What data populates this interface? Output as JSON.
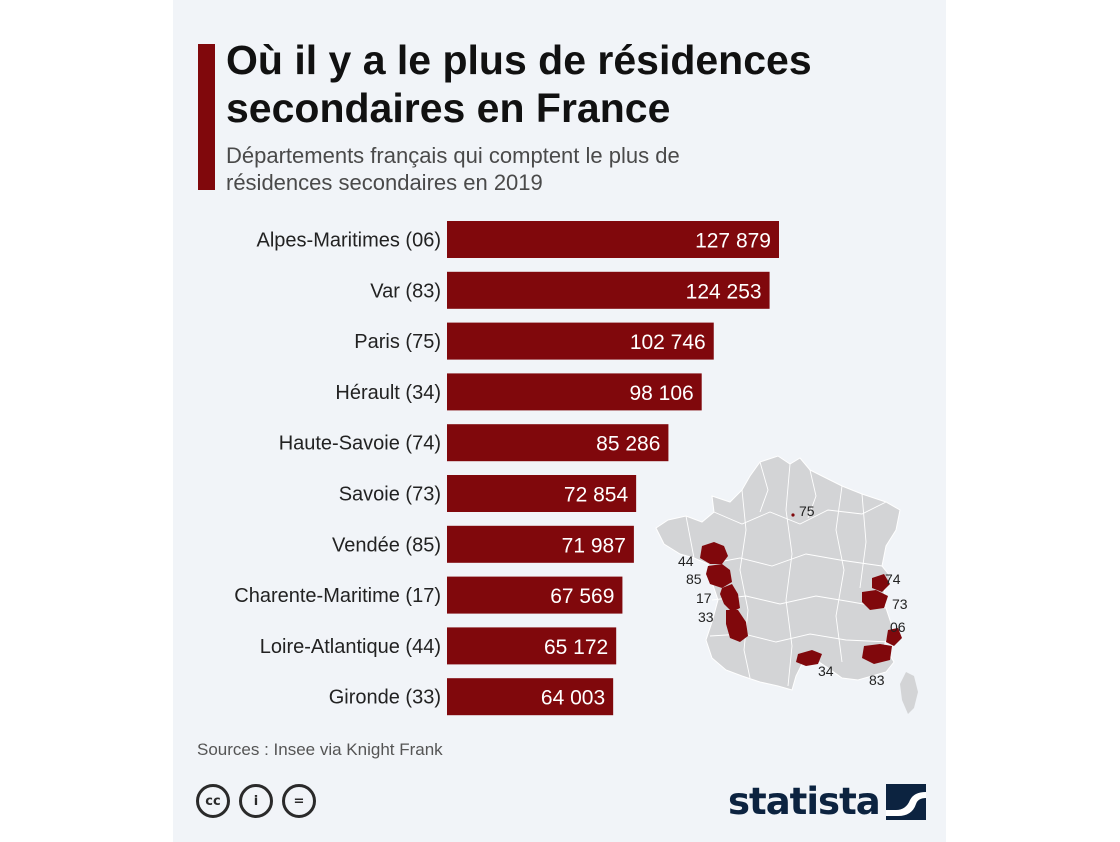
{
  "header": {
    "title": "Où il y a le plus de résidences secondaires en France",
    "subtitle": "Départements français qui comptent le plus de résidences secondaires en 2019"
  },
  "chart_data": {
    "type": "bar",
    "orientation": "horizontal",
    "title": "Où il y a le plus de résidences secondaires en France",
    "subtitle": "Départements français qui comptent le plus de résidences secondaires en 2019",
    "categories": [
      "Alpes-Maritimes (06)",
      "Var (83)",
      "Paris (75)",
      "Hérault (34)",
      "Haute-Savoie (74)",
      "Savoie (73)",
      "Vendée (85)",
      "Charente-Maritime (17)",
      "Loire-Atlantique (44)",
      "Gironde (33)"
    ],
    "values": [
      127879,
      124253,
      102746,
      98106,
      85286,
      72854,
      71987,
      67569,
      65172,
      64003
    ],
    "value_labels": [
      "127 879",
      "124 253",
      "102 746",
      "98 106",
      "85 286",
      "72 854",
      "71 987",
      "67 569",
      "65 172",
      "64 003"
    ],
    "bar_color": "#80080c",
    "value_label_color": "#ffffff",
    "grid": false
  },
  "map": {
    "labels": [
      "75",
      "44",
      "85",
      "17",
      "33",
      "74",
      "73",
      "06",
      "34",
      "83"
    ],
    "land_color": "#d3d4d6",
    "highlight_color": "#80080c"
  },
  "footer": {
    "sources": "Sources : Insee via Knight Frank",
    "license_icons": [
      "cc",
      "by",
      "nd"
    ],
    "license_icon_glyphs": [
      "cc",
      "i",
      "="
    ],
    "brand": "statista"
  },
  "colors": {
    "accent": "#80080c",
    "background": "#f1f4f8",
    "brand": "#0c2340"
  }
}
